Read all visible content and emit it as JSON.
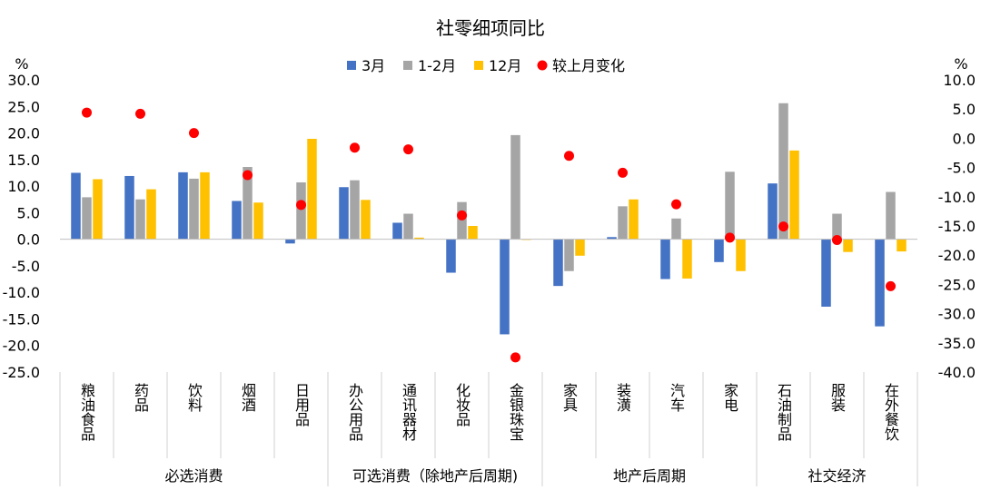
{
  "chart_data": {
    "type": "bar",
    "title": "社零细项同比",
    "left_axis_unit": "%",
    "right_axis_unit": "%",
    "ylim_left": [
      -25,
      30
    ],
    "ylim_right": [
      -40,
      10
    ],
    "left_ticks": [
      "30.0",
      "25.0",
      "20.0",
      "15.0",
      "10.0",
      "5.0",
      "0.0",
      "-5.0",
      "-10.0",
      "-15.0",
      "-20.0",
      "-25.0"
    ],
    "right_ticks": [
      "10.0",
      "5.0",
      "0.0",
      "-5.0",
      "-10.0",
      "-15.0",
      "-20.0",
      "-25.0",
      "-30.0",
      "-35.0",
      "-40.0"
    ],
    "legend_position": "top",
    "grid": false,
    "categories": [
      "粮油食品",
      "药品",
      "饮料",
      "烟酒",
      "日用品",
      "办公用品",
      "通讯器材",
      "化妆品",
      "金银珠宝",
      "家具",
      "装潢",
      "汽车",
      "家电",
      "石油制品",
      "服装",
      "在外餐饮"
    ],
    "groups": [
      {
        "label": "必选消费",
        "count": 5
      },
      {
        "label": "可选消费（除地产后周期)",
        "count": 4
      },
      {
        "label": "地产后周期",
        "count": 4
      },
      {
        "label": "社交经济",
        "count": 3
      }
    ],
    "series": [
      {
        "name": "3月",
        "type": "bar",
        "axis": "left",
        "color": "#4472C4",
        "values": [
          12.5,
          11.9,
          12.6,
          7.2,
          -0.8,
          9.8,
          3.1,
          -6.3,
          -17.9,
          -8.8,
          0.4,
          -7.5,
          -4.3,
          10.5,
          -12.7,
          -16.4
        ]
      },
      {
        "name": "1-2月",
        "type": "bar",
        "axis": "left",
        "color": "#A5A5A5",
        "values": [
          7.9,
          7.5,
          11.4,
          13.6,
          10.7,
          11.1,
          4.8,
          7.0,
          19.6,
          -6.0,
          6.2,
          3.9,
          12.7,
          25.6,
          4.8,
          8.9
        ]
      },
      {
        "name": "12月",
        "type": "bar",
        "axis": "left",
        "color": "#FFC000",
        "values": [
          11.3,
          9.4,
          12.6,
          6.9,
          18.9,
          7.4,
          0.3,
          2.5,
          -0.1,
          -3.1,
          7.5,
          -7.4,
          -6.0,
          16.7,
          -2.4,
          -2.3
        ]
      },
      {
        "name": "较上月变化",
        "type": "scatter",
        "axis": "right",
        "color": "#FF0000",
        "values": [
          4.4,
          4.2,
          0.9,
          -6.3,
          -11.4,
          -1.6,
          -1.9,
          -13.2,
          -37.5,
          -3.0,
          -5.9,
          -11.3,
          -17.0,
          -15.1,
          -17.4,
          -25.3
        ]
      }
    ]
  }
}
